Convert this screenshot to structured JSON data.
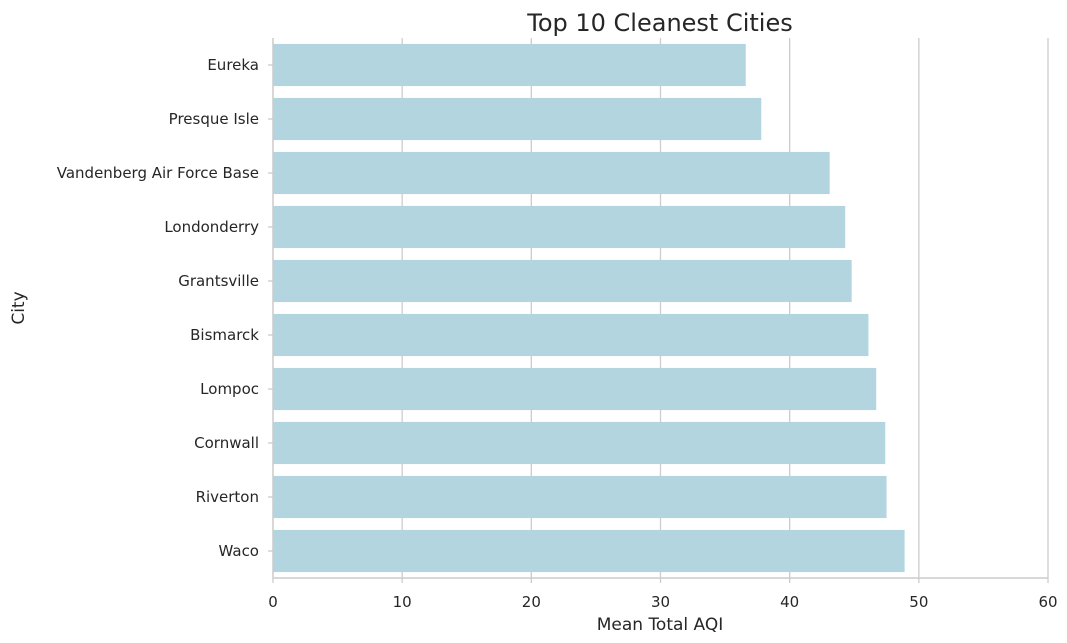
{
  "chart_data": {
    "type": "bar",
    "orientation": "horizontal",
    "title": "Top 10 Cleanest Cities",
    "xlabel": "Mean Total AQI",
    "ylabel": "City",
    "categories": [
      "Eureka",
      "Presque Isle",
      "Vandenberg Air Force Base",
      "Londonderry",
      "Grantsville",
      "Bismarck",
      "Lompoc",
      "Cornwall",
      "Riverton",
      "Waco"
    ],
    "values": [
      36.6,
      37.8,
      43.1,
      44.3,
      44.8,
      46.1,
      46.7,
      47.4,
      47.5,
      48.9
    ],
    "xlim": [
      0,
      60
    ],
    "xticks": [
      "0",
      "10",
      "20",
      "30",
      "40",
      "50",
      "60"
    ],
    "grid": "vertical",
    "bar_color": "#b3d5e0"
  }
}
